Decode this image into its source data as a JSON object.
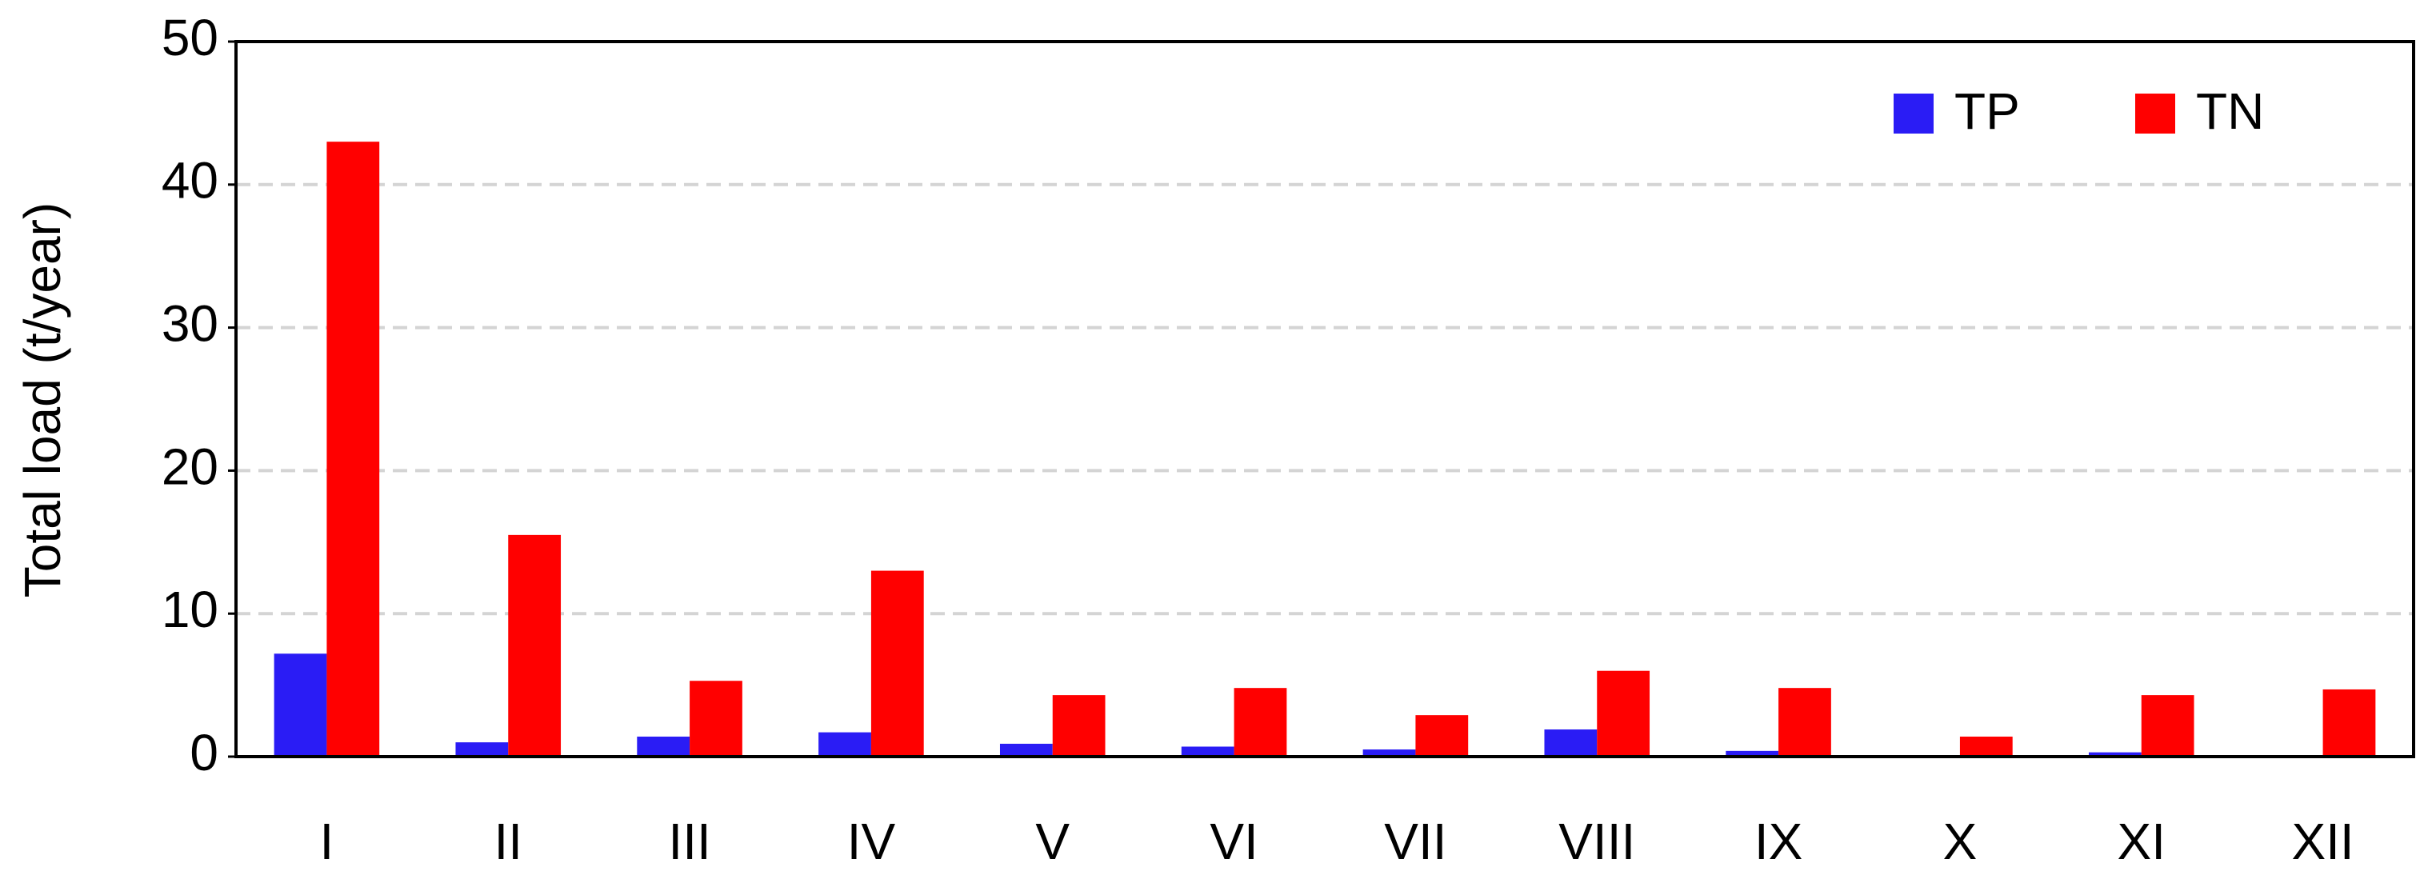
{
  "chart_data": {
    "type": "bar",
    "y_label": "Total load (t/year)",
    "categories": [
      "I",
      "II",
      "III",
      "IV",
      "V",
      "VI",
      "VII",
      "VIII",
      "IX",
      "X",
      "XI",
      "XII"
    ],
    "series": [
      {
        "name": "TP",
        "color": "#2a1cf5",
        "values": [
          7.2,
          1.0,
          1.4,
          1.7,
          0.9,
          0.7,
          0.5,
          1.9,
          0.4,
          0,
          0.3,
          0
        ]
      },
      {
        "name": "TN",
        "color": "#ff0000",
        "values": [
          43,
          15.5,
          5.3,
          13.0,
          4.3,
          4.8,
          2.9,
          6.0,
          4.8,
          1.4,
          4.3,
          4.7
        ]
      }
    ],
    "ylim": [
      0,
      50
    ],
    "yticks": [
      0,
      10,
      20,
      30,
      40,
      50
    ],
    "grid": true,
    "legend": "upper right"
  }
}
